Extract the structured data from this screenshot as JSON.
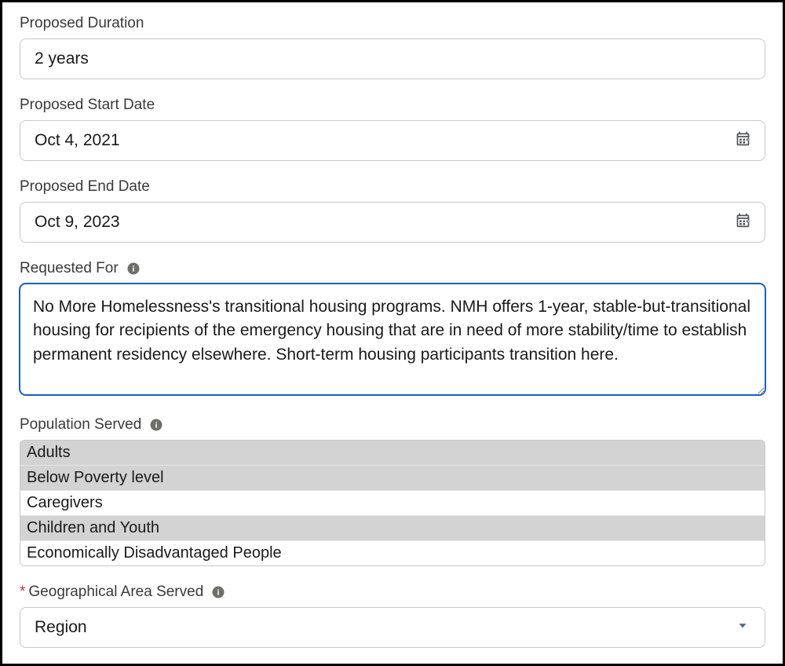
{
  "form": {
    "proposed_duration": {
      "label": "Proposed Duration",
      "value": "2 years"
    },
    "proposed_start_date": {
      "label": "Proposed Start Date",
      "value": "Oct 4, 2021"
    },
    "proposed_end_date": {
      "label": "Proposed End Date",
      "value": "Oct 9, 2023"
    },
    "requested_for": {
      "label": "Requested For",
      "value": "No More Homelessness's transitional housing programs. NMH offers 1-year, stable-but-transitional housing for recipients of the emergency housing that are in need of more stability/time to establish permanent residency elsewhere. Short-term housing participants transition here."
    },
    "population_served": {
      "label": "Population Served",
      "options": [
        {
          "label": "Adults",
          "selected": true
        },
        {
          "label": "Below Poverty level",
          "selected": true
        },
        {
          "label": "Caregivers",
          "selected": false
        },
        {
          "label": "Children and Youth",
          "selected": true
        },
        {
          "label": "Economically Disadvantaged People",
          "selected": false
        }
      ]
    },
    "geographical_area_served": {
      "label": "Geographical Area Served",
      "required": true,
      "value": "Region"
    }
  },
  "colors": {
    "border_default": "#c9c9c9",
    "border_focus": "#1b5fc1",
    "text_label": "#3a3a3a",
    "text_value": "#1a1a1a",
    "required": "#c23934",
    "listbox_selected_bg": "#d3d3d3",
    "icon": "#706e6b"
  }
}
